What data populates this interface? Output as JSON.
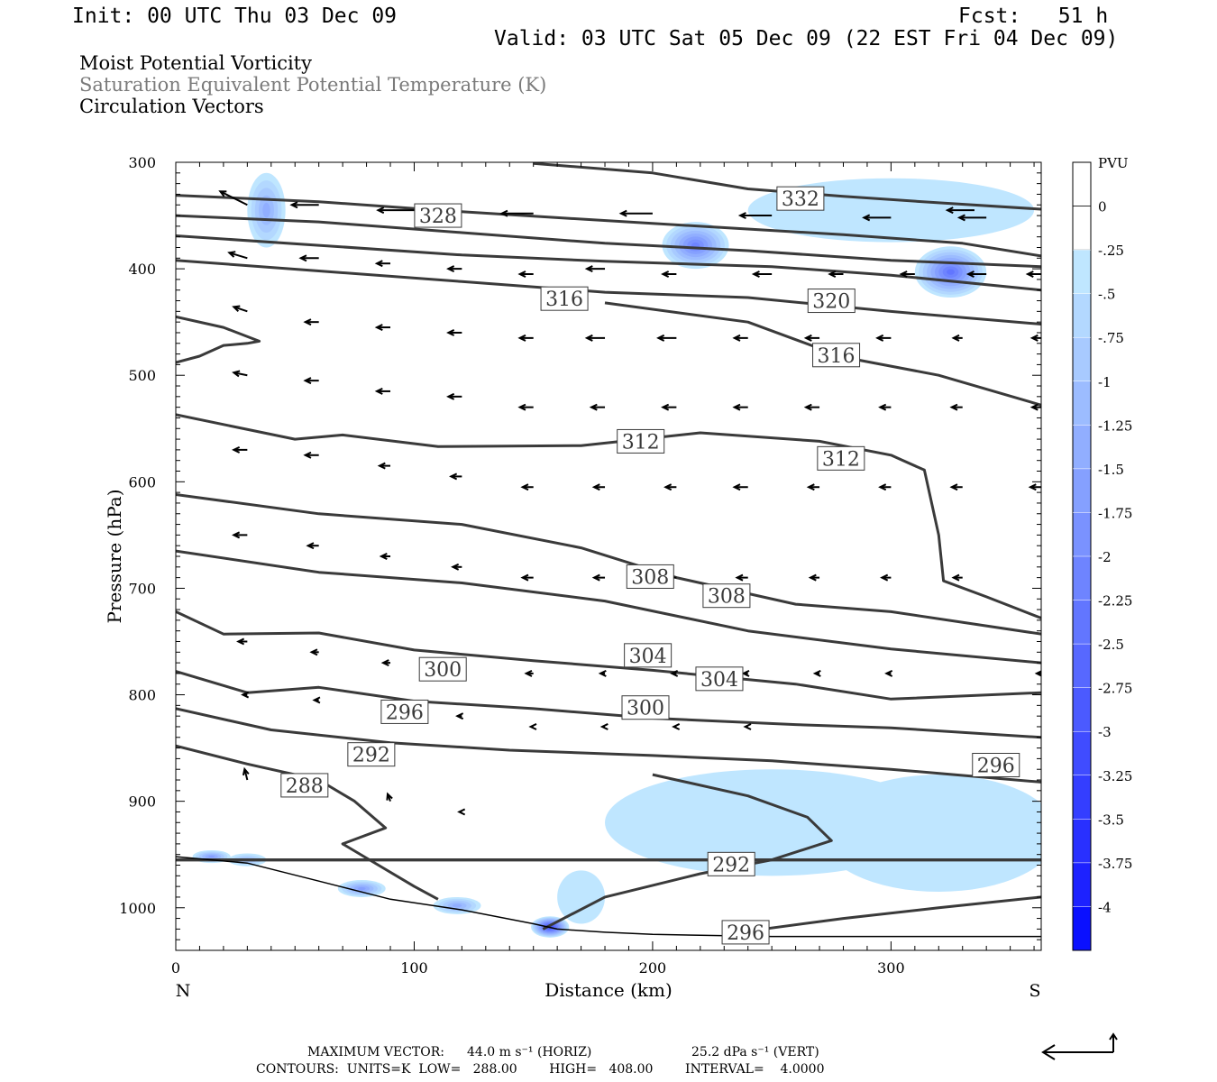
{
  "header": {
    "init": "Init: 00 UTC Thu 03 Dec 09",
    "fcst": "Fcst:   51 h",
    "valid": "Valid: 03 UTC Sat 05 Dec 09 (22 EST Fri 04 Dec 09)",
    "fields": [
      "Moist Potential Vorticity",
      "Saturation Equivalent Potential Temperature (K)",
      "Circulation Vectors"
    ]
  },
  "colors": {
    "contour": "#3a3a3a",
    "fields": [
      "#000000",
      "#7a7a7a",
      "#000000"
    ]
  },
  "footer": {
    "max_vector_label": "MAXIMUM VECTOR:",
    "max_vector_horiz": "44.0 m s⁻¹ (HORIZ)",
    "max_vector_vert": "25.2 dPa s⁻¹ (VERT)",
    "contours_line": "CONTOURS:  UNITS=K  LOW=   288.00        HIGH=   408.00        INTERVAL=    4.0000"
  },
  "chart_data": {
    "type": "cross-section",
    "xlabel": "Distance (km)",
    "ylabel": "Pressure (hPa)",
    "xlim": [
      0,
      363
    ],
    "ylim": [
      1040,
      300
    ],
    "xticks": [
      0,
      100,
      200,
      300
    ],
    "yticks": [
      300,
      400,
      500,
      600,
      700,
      800,
      900,
      1000
    ],
    "x_end_labels": {
      "left": "N",
      "right": "S"
    },
    "colorbar": {
      "label": "PVU",
      "levels": [
        "0",
        "-.25",
        "-.5",
        "-.75",
        "-1",
        "-1.25",
        "-1.5",
        "-1.75",
        "-2",
        "-2.25",
        "-2.5",
        "-2.75",
        "-3",
        "-3.25",
        "-3.5",
        "-3.75",
        "-4"
      ],
      "colors": [
        "#ffffff",
        "#ffffff",
        "#bfe6ff",
        "#b3d8ff",
        "#a8caff",
        "#9cbcff",
        "#91aeff",
        "#85a0ff",
        "#7a92ff",
        "#6e84ff",
        "#6276ff",
        "#5768ff",
        "#4b5aff",
        "#404cff",
        "#343eff",
        "#2930ff",
        "#1d22ff",
        "#0a10ff"
      ]
    },
    "terrain": [
      [
        0,
        952
      ],
      [
        30,
        958
      ],
      [
        60,
        975
      ],
      [
        90,
        992
      ],
      [
        120,
        1002
      ],
      [
        150,
        1015
      ],
      [
        160,
        1020
      ],
      [
        180,
        1023
      ],
      [
        200,
        1025
      ],
      [
        250,
        1027
      ],
      [
        300,
        1027
      ],
      [
        363,
        1027
      ]
    ],
    "contours": [
      {
        "label": "332",
        "label_at": [
          262,
          334
        ],
        "points": [
          [
            150,
            301
          ],
          [
            200,
            310
          ],
          [
            240,
            325
          ],
          [
            280,
            332
          ],
          [
            320,
            338
          ],
          [
            363,
            344
          ]
        ]
      },
      {
        "label": "328",
        "label_at": [
          110,
          350
        ],
        "points": [
          [
            0,
            331
          ],
          [
            60,
            337
          ],
          [
            110,
            345
          ],
          [
            160,
            352
          ],
          [
            220,
            360
          ],
          [
            280,
            368
          ],
          [
            330,
            376
          ],
          [
            363,
            388
          ]
        ]
      },
      {
        "label": "",
        "label_at": null,
        "points": [
          [
            0,
            350
          ],
          [
            60,
            356
          ],
          [
            120,
            366
          ],
          [
            180,
            376
          ],
          [
            240,
            383
          ],
          [
            300,
            392
          ],
          [
            363,
            398
          ]
        ]
      },
      {
        "label": "",
        "label_at": null,
        "points": [
          [
            0,
            369
          ],
          [
            60,
            378
          ],
          [
            120,
            387
          ],
          [
            180,
            393
          ],
          [
            250,
            398
          ],
          [
            300,
            406
          ],
          [
            363,
            420
          ]
        ]
      },
      {
        "label": "320",
        "label_at": [
          275,
          430
        ],
        "points": [
          [
            0,
            392
          ],
          [
            60,
            402
          ],
          [
            120,
            412
          ],
          [
            180,
            422
          ],
          [
            240,
            427
          ],
          [
            300,
            440
          ],
          [
            363,
            452
          ]
        ]
      },
      {
        "label": "316",
        "label_at": [
          163,
          428
        ],
        "points": [
          [
            0,
            445
          ],
          [
            20,
            455
          ],
          [
            35,
            468
          ],
          [
            30,
            470
          ],
          [
            20,
            472
          ],
          [
            10,
            482
          ],
          [
            0,
            488
          ]
        ]
      },
      {
        "label": "316",
        "label_at": [
          277,
          481
        ],
        "points": [
          [
            180,
            432
          ],
          [
            240,
            450
          ],
          [
            280,
            483
          ],
          [
            320,
            500
          ],
          [
            363,
            528
          ]
        ]
      },
      {
        "label": "312",
        "label_at": [
          195,
          562
        ],
        "points": [
          [
            0,
            537
          ],
          [
            50,
            560
          ],
          [
            70,
            556
          ],
          [
            110,
            567
          ],
          [
            170,
            566
          ],
          [
            220,
            554
          ],
          [
            270,
            562
          ],
          [
            300,
            575
          ],
          [
            314,
            589
          ],
          [
            320,
            650
          ],
          [
            322,
            693
          ],
          [
            340,
            708
          ],
          [
            363,
            728
          ]
        ]
      },
      {
        "label": "312",
        "label_at": [
          279,
          578
        ],
        "points": [
          [
            0,
            612
          ],
          [
            60,
            630
          ],
          [
            120,
            640
          ],
          [
            170,
            662
          ],
          [
            210,
            690
          ],
          [
            260,
            715
          ],
          [
            300,
            722
          ],
          [
            363,
            743
          ]
        ]
      },
      {
        "label": "308",
        "label_at": [
          199,
          689
        ],
        "points": [
          [
            0,
            665
          ],
          [
            60,
            685
          ],
          [
            120,
            695
          ],
          [
            180,
            712
          ],
          [
            240,
            740
          ],
          [
            300,
            757
          ],
          [
            363,
            770
          ]
        ]
      },
      {
        "label": "308",
        "label_at": [
          231,
          707
        ],
        "points": [
          [
            0,
            722
          ],
          [
            20,
            743
          ],
          [
            60,
            742
          ],
          [
            100,
            758
          ],
          [
            150,
            768
          ],
          [
            200,
            777
          ],
          [
            260,
            790
          ],
          [
            300,
            804
          ],
          [
            363,
            798
          ]
        ]
      },
      {
        "label": "304",
        "label_at": [
          198,
          763
        ],
        "points": [
          [
            0,
            778
          ],
          [
            30,
            798
          ],
          [
            60,
            793
          ],
          [
            100,
            806
          ],
          [
            150,
            813
          ],
          [
            200,
            822
          ],
          [
            260,
            828
          ],
          [
            300,
            831
          ],
          [
            363,
            840
          ]
        ]
      },
      {
        "label": "304",
        "label_at": [
          228,
          785
        ],
        "points": [
          [
            0,
            813
          ],
          [
            40,
            833
          ],
          [
            90,
            845
          ],
          [
            140,
            852
          ],
          [
            200,
            857
          ],
          [
            250,
            862
          ],
          [
            300,
            870
          ],
          [
            363,
            882
          ]
        ]
      },
      {
        "label": "300",
        "label_at": [
          112,
          776
        ],
        "points": [
          [
            0,
            848
          ],
          [
            30,
            865
          ],
          [
            60,
            880
          ],
          [
            75,
            900
          ],
          [
            88,
            925
          ],
          [
            70,
            940
          ],
          [
            85,
            960
          ],
          [
            100,
            980
          ],
          [
            110,
            992
          ]
        ]
      },
      {
        "label": "300",
        "label_at": [
          197,
          812
        ],
        "points": [
          [
            154,
            1020
          ],
          [
            180,
            990
          ],
          [
            220,
            968
          ],
          [
            250,
            955
          ],
          [
            275,
            937
          ],
          [
            265,
            915
          ],
          [
            240,
            895
          ],
          [
            200,
            875
          ]
        ]
      },
      {
        "label": "296",
        "label_at": [
          96,
          816
        ],
        "points": [
          [
            240,
            1022
          ],
          [
            280,
            1010
          ],
          [
            320,
            1000
          ],
          [
            363,
            990
          ]
        ]
      },
      {
        "label": "292",
        "label_at": [
          82,
          856
        ],
        "points": [
          [
            0,
            955
          ],
          [
            363,
            955
          ]
        ]
      },
      {
        "label": "288",
        "label_at": [
          54,
          885
        ],
        "points": [
          [
            0,
            955
          ],
          [
            363,
            955
          ]
        ]
      },
      {
        "label": "296",
        "label_at": [
          344,
          866
        ],
        "points": [
          [
            0,
            955
          ],
          [
            363,
            955
          ]
        ]
      },
      {
        "label": "292",
        "label_at": [
          233,
          959
        ],
        "points": [
          [
            0,
            955
          ],
          [
            363,
            955
          ]
        ]
      },
      {
        "label": "296",
        "label_at": [
          239,
          1023
        ],
        "points": [
          [
            0,
            955
          ],
          [
            363,
            955
          ]
        ]
      }
    ],
    "pv_blobs": [
      {
        "x": 38,
        "p": 345,
        "rx": 8,
        "rp": 35,
        "level": 5
      },
      {
        "x": 218,
        "p": 378,
        "rx": 14,
        "rp": 22,
        "level": 8
      },
      {
        "x": 325,
        "p": 403,
        "rx": 15,
        "rp": 24,
        "level": 9
      },
      {
        "x": 300,
        "p": 345,
        "rx": 60,
        "rp": 30,
        "level": 1
      },
      {
        "x": 250,
        "p": 920,
        "rx": 70,
        "rp": 50,
        "level": 1
      },
      {
        "x": 320,
        "p": 930,
        "rx": 50,
        "rp": 55,
        "level": 1
      },
      {
        "x": 15,
        "p": 952,
        "rx": 8,
        "rp": 6,
        "level": 6
      },
      {
        "x": 30,
        "p": 955,
        "rx": 8,
        "rp": 6,
        "level": 4
      },
      {
        "x": 78,
        "p": 982,
        "rx": 10,
        "rp": 8,
        "level": 6
      },
      {
        "x": 118,
        "p": 998,
        "rx": 10,
        "rp": 8,
        "level": 5
      },
      {
        "x": 157,
        "p": 1018,
        "rx": 8,
        "rp": 10,
        "level": 12
      },
      {
        "x": 170,
        "p": 990,
        "rx": 10,
        "rp": 25,
        "level": 1
      }
    ],
    "vectors": [
      [
        30,
        340,
        -30,
        -15
      ],
      [
        60,
        340,
        -30,
        0
      ],
      [
        100,
        345,
        -40,
        0
      ],
      [
        150,
        348,
        -35,
        0
      ],
      [
        200,
        348,
        -35,
        0
      ],
      [
        250,
        350,
        -35,
        0
      ],
      [
        300,
        352,
        -30,
        0
      ],
      [
        340,
        352,
        -30,
        0
      ],
      [
        335,
        345,
        -30,
        0
      ],
      [
        0,
        330,
        -35,
        -8
      ],
      [
        30,
        390,
        -20,
        -6
      ],
      [
        60,
        390,
        -20,
        0
      ],
      [
        90,
        395,
        -15,
        0
      ],
      [
        120,
        400,
        -15,
        0
      ],
      [
        150,
        405,
        -15,
        0
      ],
      [
        180,
        400,
        -20,
        0
      ],
      [
        210,
        405,
        -15,
        0
      ],
      [
        250,
        405,
        -20,
        0
      ],
      [
        280,
        405,
        -15,
        0
      ],
      [
        310,
        405,
        -15,
        0
      ],
      [
        340,
        405,
        -20,
        0
      ],
      [
        363,
        405,
        -15,
        0
      ],
      [
        30,
        440,
        -15,
        -5
      ],
      [
        60,
        450,
        -15,
        0
      ],
      [
        90,
        455,
        -15,
        0
      ],
      [
        120,
        460,
        -15,
        0
      ],
      [
        150,
        465,
        -15,
        0
      ],
      [
        180,
        465,
        -20,
        0
      ],
      [
        210,
        465,
        -20,
        0
      ],
      [
        240,
        465,
        -15,
        0
      ],
      [
        270,
        465,
        -15,
        0
      ],
      [
        300,
        465,
        -15,
        0
      ],
      [
        330,
        465,
        -10,
        0
      ],
      [
        363,
        465,
        -10,
        0
      ],
      [
        30,
        500,
        -15,
        -3
      ],
      [
        60,
        505,
        -15,
        0
      ],
      [
        90,
        515,
        -15,
        0
      ],
      [
        120,
        520,
        -15,
        0
      ],
      [
        150,
        530,
        -15,
        0
      ],
      [
        180,
        530,
        -15,
        0
      ],
      [
        210,
        530,
        -15,
        0
      ],
      [
        240,
        530,
        -15,
        0
      ],
      [
        270,
        530,
        -15,
        0
      ],
      [
        300,
        530,
        -12,
        0
      ],
      [
        330,
        530,
        -12,
        0
      ],
      [
        363,
        530,
        -10,
        0
      ],
      [
        30,
        570,
        -15,
        0
      ],
      [
        60,
        575,
        -15,
        0
      ],
      [
        90,
        585,
        -12,
        0
      ],
      [
        120,
        595,
        -12,
        0
      ],
      [
        150,
        605,
        -12,
        0
      ],
      [
        180,
        605,
        -12,
        0
      ],
      [
        210,
        605,
        -12,
        0
      ],
      [
        240,
        605,
        -15,
        0
      ],
      [
        270,
        605,
        -12,
        0
      ],
      [
        300,
        605,
        -12,
        0
      ],
      [
        330,
        605,
        -12,
        0
      ],
      [
        363,
        605,
        -12,
        0
      ],
      [
        30,
        650,
        -15,
        0
      ],
      [
        60,
        660,
        -12,
        0
      ],
      [
        90,
        670,
        -10,
        0
      ],
      [
        120,
        680,
        -10,
        0
      ],
      [
        150,
        690,
        -12,
        0
      ],
      [
        180,
        690,
        -12,
        0
      ],
      [
        210,
        690,
        -10,
        0
      ],
      [
        240,
        690,
        -12,
        0
      ],
      [
        270,
        690,
        -10,
        0
      ],
      [
        300,
        690,
        -10,
        0
      ],
      [
        330,
        690,
        -10,
        0
      ],
      [
        30,
        750,
        -10,
        0
      ],
      [
        60,
        760,
        -8,
        0
      ],
      [
        90,
        770,
        -8,
        0
      ],
      [
        150,
        780,
        -8,
        0
      ],
      [
        180,
        780,
        -5,
        0
      ],
      [
        210,
        780,
        -5,
        0
      ],
      [
        240,
        780,
        -5,
        0
      ],
      [
        270,
        780,
        -5,
        0
      ],
      [
        300,
        780,
        -5,
        0
      ],
      [
        363,
        780,
        -5,
        0
      ],
      [
        30,
        800,
        -5,
        0
      ],
      [
        60,
        805,
        -5,
        0
      ],
      [
        90,
        810,
        -5,
        0
      ],
      [
        120,
        820,
        -5,
        0
      ],
      [
        150,
        830,
        -3,
        0
      ],
      [
        180,
        830,
        -3,
        0
      ],
      [
        210,
        830,
        -3,
        0
      ],
      [
        240,
        830,
        -3,
        0
      ],
      [
        30,
        880,
        -3,
        -12
      ],
      [
        60,
        890,
        -3,
        -10
      ],
      [
        90,
        900,
        -3,
        -8
      ],
      [
        120,
        910,
        -3,
        0
      ]
    ]
  }
}
